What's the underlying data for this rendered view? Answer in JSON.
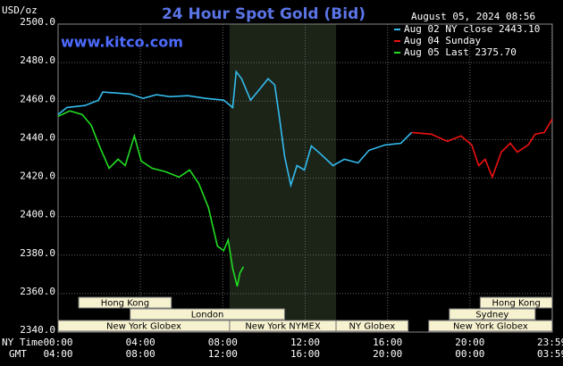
{
  "chart_data": {
    "type": "line",
    "title": "24 Hour Spot Gold (Bid)",
    "subtitle": "www.kitco.com",
    "y_label": "USD/oz",
    "timestamp": "August 05, 2024 08:56",
    "x_label": "NY Time",
    "x2_label": "GMT",
    "xlim": [
      0,
      24
    ],
    "xticks": [
      {
        "value": 0,
        "label": "00:00"
      },
      {
        "value": 4,
        "label": "04:00"
      },
      {
        "value": 8,
        "label": "08:00"
      },
      {
        "value": 12,
        "label": "12:00"
      },
      {
        "value": 16,
        "label": "16:00"
      },
      {
        "value": 20,
        "label": "20:00"
      },
      {
        "value": 23.98,
        "label": "23:59"
      }
    ],
    "gmt_labels": [
      "04:00",
      "08:00",
      "12:00",
      "16:00",
      "20:00",
      "00:00",
      "03:59"
    ],
    "ylim": [
      2340,
      2500
    ],
    "yticks": [
      {
        "value": 2340,
        "label": "2340.0"
      },
      {
        "value": 2360,
        "label": "2360.0"
      },
      {
        "value": 2380,
        "label": "2380.0"
      },
      {
        "value": 2400,
        "label": "2400.0"
      },
      {
        "value": 2420,
        "label": "2420.0"
      },
      {
        "value": 2440,
        "label": "2440.0"
      },
      {
        "value": 2460,
        "label": "2460.0"
      },
      {
        "value": 2480,
        "label": "2480.0"
      },
      {
        "value": 2500,
        "label": "2500.0"
      }
    ],
    "grid": true,
    "highlight": {
      "start": 8.33,
      "end": 13.5
    },
    "session_rows": [
      [
        {
          "name": "Hong Kong",
          "start": 1,
          "end": 5.5
        },
        {
          "name": "Hong Kong",
          "start": 20.5,
          "end": 24
        }
      ],
      [
        {
          "name": "London",
          "start": 3.5,
          "end": 11
        },
        {
          "name": "Sydney",
          "start": 19,
          "end": 23.17
        }
      ],
      [
        {
          "name": "New York Globex",
          "start": 0,
          "end": 8.33
        },
        {
          "name": "New York NYMEX",
          "start": 8.33,
          "end": 13.5
        },
        {
          "name": "NY Globex",
          "start": 13.5,
          "end": 17
        },
        {
          "name": "New York Globex",
          "start": 18,
          "end": 24
        }
      ]
    ],
    "series": [
      {
        "name": "Aug 02 NY close 2443.10",
        "color": "#33bbee",
        "x": [
          0,
          0.43,
          1.3,
          1.96,
          2.17,
          2.83,
          3.48,
          4.13,
          4.78,
          5.43,
          6.3,
          7.17,
          8.04,
          8.48,
          8.65,
          8.91,
          9.35,
          9.78,
          10.2,
          10.52,
          10.74,
          11,
          11.3,
          11.6,
          11.96,
          12.3,
          12.74,
          13.35,
          13.9,
          14.57,
          15.1,
          15.87,
          16.65,
          17.17
        ],
        "values": [
          2453.0,
          2456.7,
          2457.7,
          2460.5,
          2464.7,
          2464.2,
          2463.7,
          2461.4,
          2463.3,
          2462.3,
          2462.8,
          2461.4,
          2460.5,
          2456.7,
          2475.3,
          2471.6,
          2460.5,
          2466.0,
          2471.6,
          2468.4,
          2452.1,
          2431.2,
          2416.3,
          2426.5,
          2424.2,
          2436.7,
          2432.6,
          2426.5,
          2429.8,
          2427.9,
          2434.4,
          2437.2,
          2438.1,
          2443.7
        ]
      },
      {
        "name": "Aug 04 Sunday",
        "color": "#ee1111",
        "x": [
          17.17,
          18.13,
          18.9,
          19.57,
          20.09,
          20.43,
          20.74,
          21.09,
          21.52,
          21.96,
          22.3,
          22.83,
          23.17,
          23.61,
          24
        ],
        "values": [
          2443.7,
          2442.8,
          2439.1,
          2441.9,
          2437.2,
          2426.5,
          2429.8,
          2420.5,
          2433.5,
          2438.1,
          2433.5,
          2437.2,
          2442.8,
          2443.7,
          2450.7
        ]
      },
      {
        "name": "Aug 05 Last 2375.70",
        "color": "#22dd22",
        "x": [
          0,
          0.57,
          1.17,
          1.61,
          2.04,
          2.48,
          2.91,
          3.26,
          3.7,
          4.04,
          4.57,
          5.22,
          5.87,
          6.39,
          6.83,
          7.3,
          7.74,
          8.04,
          8.26,
          8.48,
          8.7,
          8.83,
          9
        ],
        "values": [
          2452.1,
          2454.9,
          2453.0,
          2447.4,
          2435.8,
          2425.1,
          2429.8,
          2426.5,
          2441.9,
          2428.8,
          2425.1,
          2423.3,
          2420.5,
          2424.2,
          2417.2,
          2404.7,
          2384.7,
          2382.3,
          2387.9,
          2373.0,
          2363.7,
          2370.7,
          2374.0
        ]
      }
    ]
  }
}
